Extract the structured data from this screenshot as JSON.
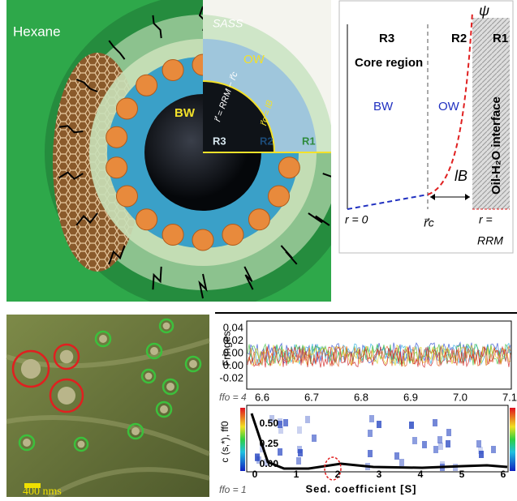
{
  "micelle": {
    "hexane": "Hexane",
    "sass": "SASS",
    "ow": "OW",
    "bw": "BW",
    "r3": "R3",
    "r2": "R2",
    "r1": "R1",
    "radius_eq": "r⃗ = RRM − r⃗c",
    "core_eq": "r⃗c = lB"
  },
  "profile": {
    "psi": "ψ",
    "regions": [
      "R3",
      "R2",
      "R1"
    ],
    "core": "Core region",
    "bw": "BW",
    "ow": "OW",
    "interface": "Oil-H₂O interface",
    "lb": "lB",
    "r0": "r = 0",
    "rc": "r⃗c",
    "rrm_eq": "r =",
    "rrm": "RRM"
  },
  "micrograph": {
    "scale": "400 nms"
  },
  "sedimentation": {
    "fringes": {
      "ylabel": "Fringes",
      "yticks": [
        "0.04",
        "0.02",
        "0.00",
        "0.00",
        "-0.02"
      ],
      "xticks": [
        "6.6",
        "6.7",
        "6.8",
        "6.9",
        "7.0",
        "7.1"
      ]
    },
    "distribution": {
      "ylabel": "c (s,*), ff0",
      "xlabel": "Sed. coefficient [S]",
      "ff_top": "ffo = 4",
      "ff_bottom": "ffo = 1",
      "yticks": [
        "0.50",
        "0.25",
        "0.00"
      ],
      "xticks": [
        "0",
        "1",
        "2",
        "3",
        "4",
        "5",
        "6"
      ]
    }
  }
}
